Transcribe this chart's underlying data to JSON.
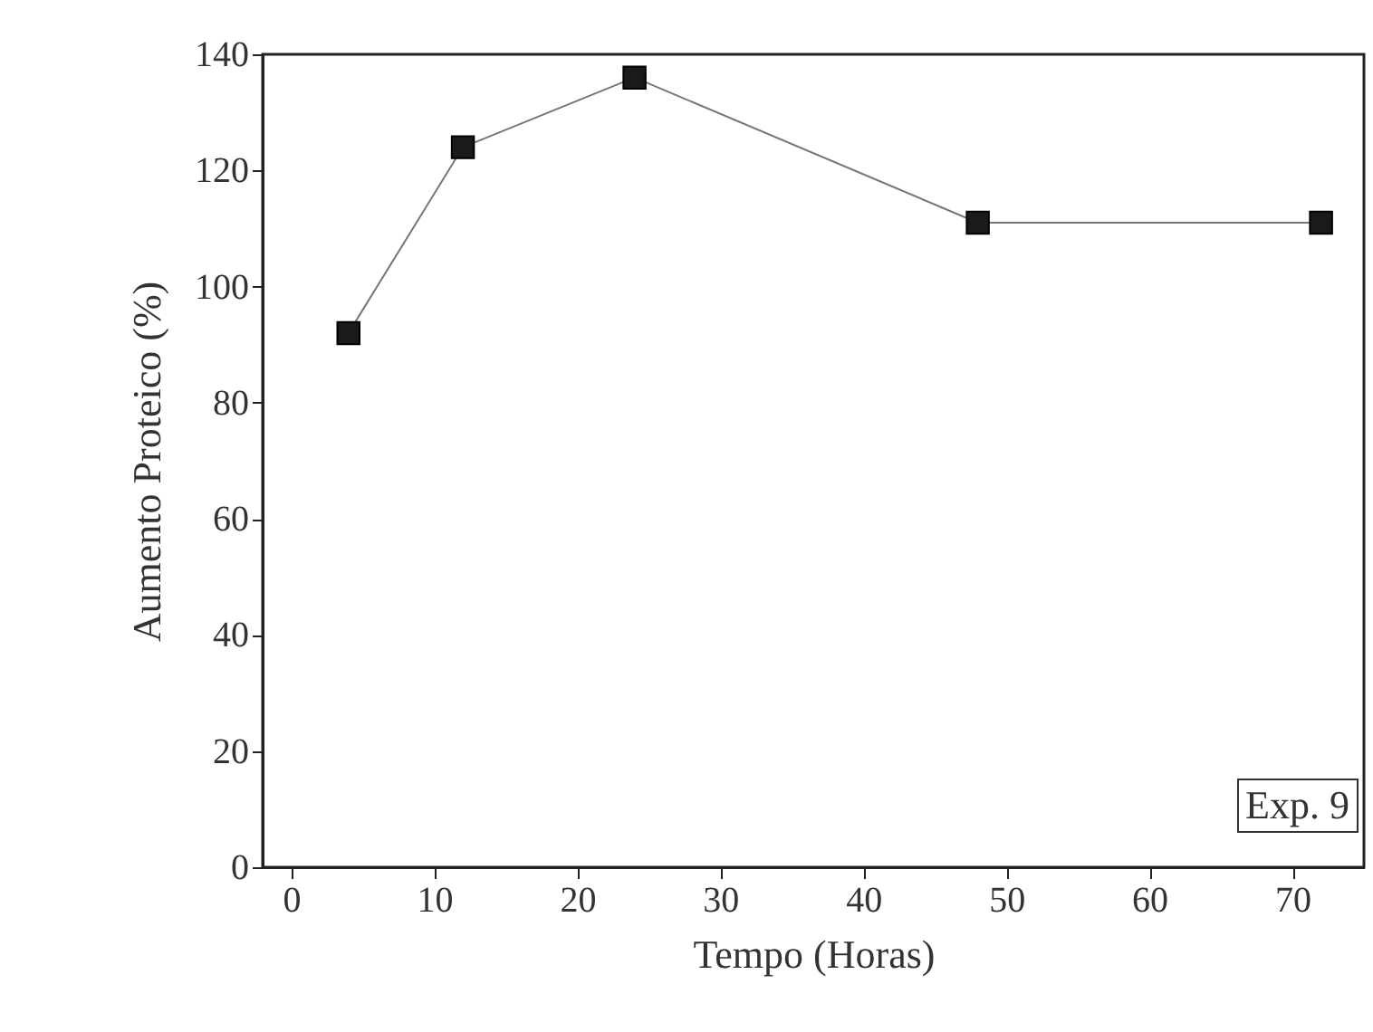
{
  "chart_data": {
    "type": "line",
    "xlabel": "Tempo (Horas)",
    "ylabel": "Aumento Proteico (%)",
    "x": [
      4,
      12,
      24,
      48,
      72
    ],
    "series": [
      {
        "color": "#1a1a1a",
        "values": [
          92,
          124,
          136,
          111,
          111
        ]
      }
    ],
    "marker": "square",
    "line_style": "solid",
    "xlim": [
      -2,
      75
    ],
    "xticks": [
      0,
      10,
      20,
      30,
      40,
      50,
      60,
      70
    ],
    "ylim": [
      0,
      140
    ],
    "yticks": [
      0,
      20,
      40,
      60,
      80,
      100,
      120,
      140
    ],
    "annotations": [
      "Exp. 9"
    ]
  }
}
